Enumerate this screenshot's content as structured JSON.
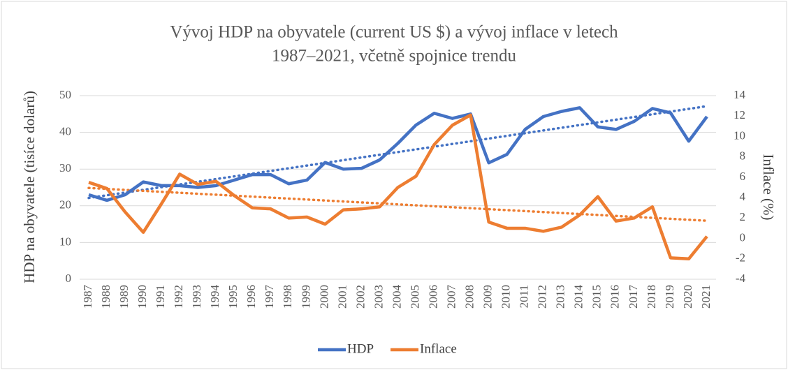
{
  "chart_data": {
    "type": "line",
    "title": [
      "Vývoj HDP na obyvatele (current US $) a vývoj inflace v letech",
      "1987–2021, včetně spojnice trendu"
    ],
    "y_label": "HDP na obyvatele (tisíce dolarů)",
    "y2_label": "Inflace (%)",
    "categories": [
      "1987",
      "1988",
      "1989",
      "1990",
      "1991",
      "1992",
      "1993",
      "1994",
      "1995",
      "1996",
      "1997",
      "1998",
      "1999",
      "2000",
      "2001",
      "2002",
      "2003",
      "2004",
      "2005",
      "2006",
      "2007",
      "2008",
      "2009",
      "2010",
      "2011",
      "2012",
      "2013",
      "2014",
      "2015",
      "2016",
      "2017",
      "2018",
      "2019",
      "2020",
      "2021"
    ],
    "series": [
      {
        "name": "HDP",
        "color": "#4472c4",
        "axis": "y",
        "trendline": true,
        "values": [
          23,
          21.5,
          23,
          26.5,
          25.5,
          25.5,
          25,
          25.5,
          27,
          28.5,
          28.5,
          26,
          27,
          31.8,
          30,
          30.2,
          32.5,
          37,
          42,
          45.2,
          43.8,
          45,
          31.7,
          34,
          40.8,
          44.3,
          45.7,
          46.7,
          41.5,
          40.8,
          43,
          46.5,
          45.3,
          37.6,
          44.3
        ]
      },
      {
        "name": "Inflace",
        "color": "#ed7d31",
        "axis": "y2",
        "trendline": true,
        "values": [
          5.5,
          4.9,
          2.6,
          0.6,
          3.4,
          6.3,
          5.3,
          5.6,
          4.2,
          3.0,
          2.9,
          2.0,
          2.1,
          1.4,
          2.8,
          2.9,
          3.1,
          5.0,
          6.1,
          9.2,
          11.1,
          12.1,
          1.6,
          1.0,
          1.0,
          0.7,
          1.1,
          2.3,
          4.1,
          1.7,
          2.0,
          3.1,
          -1.9,
          -2.0,
          0.2
        ]
      }
    ],
    "ylim": [
      0,
      50
    ],
    "yticks": [
      0,
      10,
      20,
      30,
      40,
      50
    ],
    "y2lim": [
      -4,
      14
    ],
    "y2ticks": [
      -4,
      -2,
      0,
      2,
      4,
      6,
      8,
      10,
      12,
      14
    ],
    "grid": true,
    "legend": "bottom"
  }
}
